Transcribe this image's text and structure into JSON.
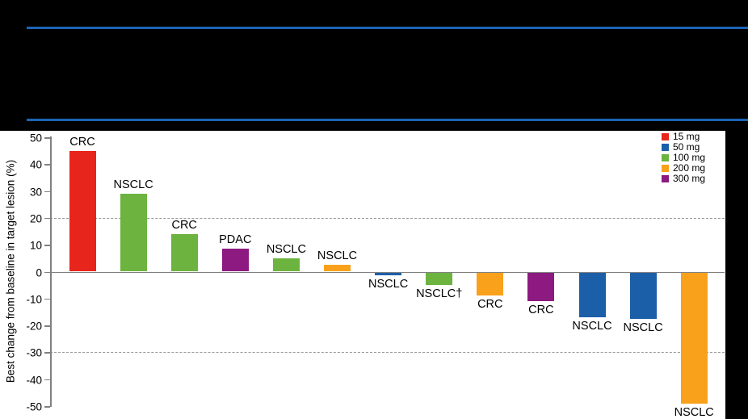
{
  "header": {
    "rule_color": "#1b64b4"
  },
  "chart_data": {
    "type": "bar",
    "title": "",
    "xlabel": "",
    "ylabel": "Best change from baseline in target lesion (%)",
    "ylim": [
      -50,
      50
    ],
    "yticks": [
      50,
      40,
      30,
      20,
      10,
      0,
      -10,
      -20,
      -30,
      -40,
      -50
    ],
    "reference_lines_dashed": [
      20,
      -30
    ],
    "grid": "dashed reference lines at +20 and -30 only",
    "legend_position": "top-right",
    "legend": [
      {
        "label": "15 mg",
        "color": "#e8251c"
      },
      {
        "label": "50 mg",
        "color": "#1c5fa9"
      },
      {
        "label": "100 mg",
        "color": "#6cb33f"
      },
      {
        "label": "200 mg",
        "color": "#f9a11b"
      },
      {
        "label": "300 mg",
        "color": "#8c1a80"
      }
    ],
    "bars": [
      {
        "label": "CRC",
        "dose": "15 mg",
        "value": 45
      },
      {
        "label": "NSCLC",
        "dose": "100 mg",
        "value": 29
      },
      {
        "label": "CRC",
        "dose": "100 mg",
        "value": 14
      },
      {
        "label": "PDAC",
        "dose": "300 mg",
        "value": 8.5
      },
      {
        "label": "NSCLC",
        "dose": "100 mg",
        "value": 5
      },
      {
        "label": "NSCLC",
        "dose": "200 mg",
        "value": 2.5
      },
      {
        "label": "NSCLC",
        "dose": "50 mg",
        "value": -1
      },
      {
        "label": "NSCLC†",
        "dose": "100 mg",
        "value": -4.5
      },
      {
        "label": "CRC",
        "dose": "200 mg",
        "value": -8.5
      },
      {
        "label": "CRC",
        "dose": "300 mg",
        "value": -10.5
      },
      {
        "label": "NSCLC",
        "dose": "50 mg",
        "value": -16.5
      },
      {
        "label": "NSCLC",
        "dose": "50 mg",
        "value": -17
      },
      {
        "label": "NSCLC",
        "dose": "200 mg",
        "value": -48.5
      }
    ]
  }
}
